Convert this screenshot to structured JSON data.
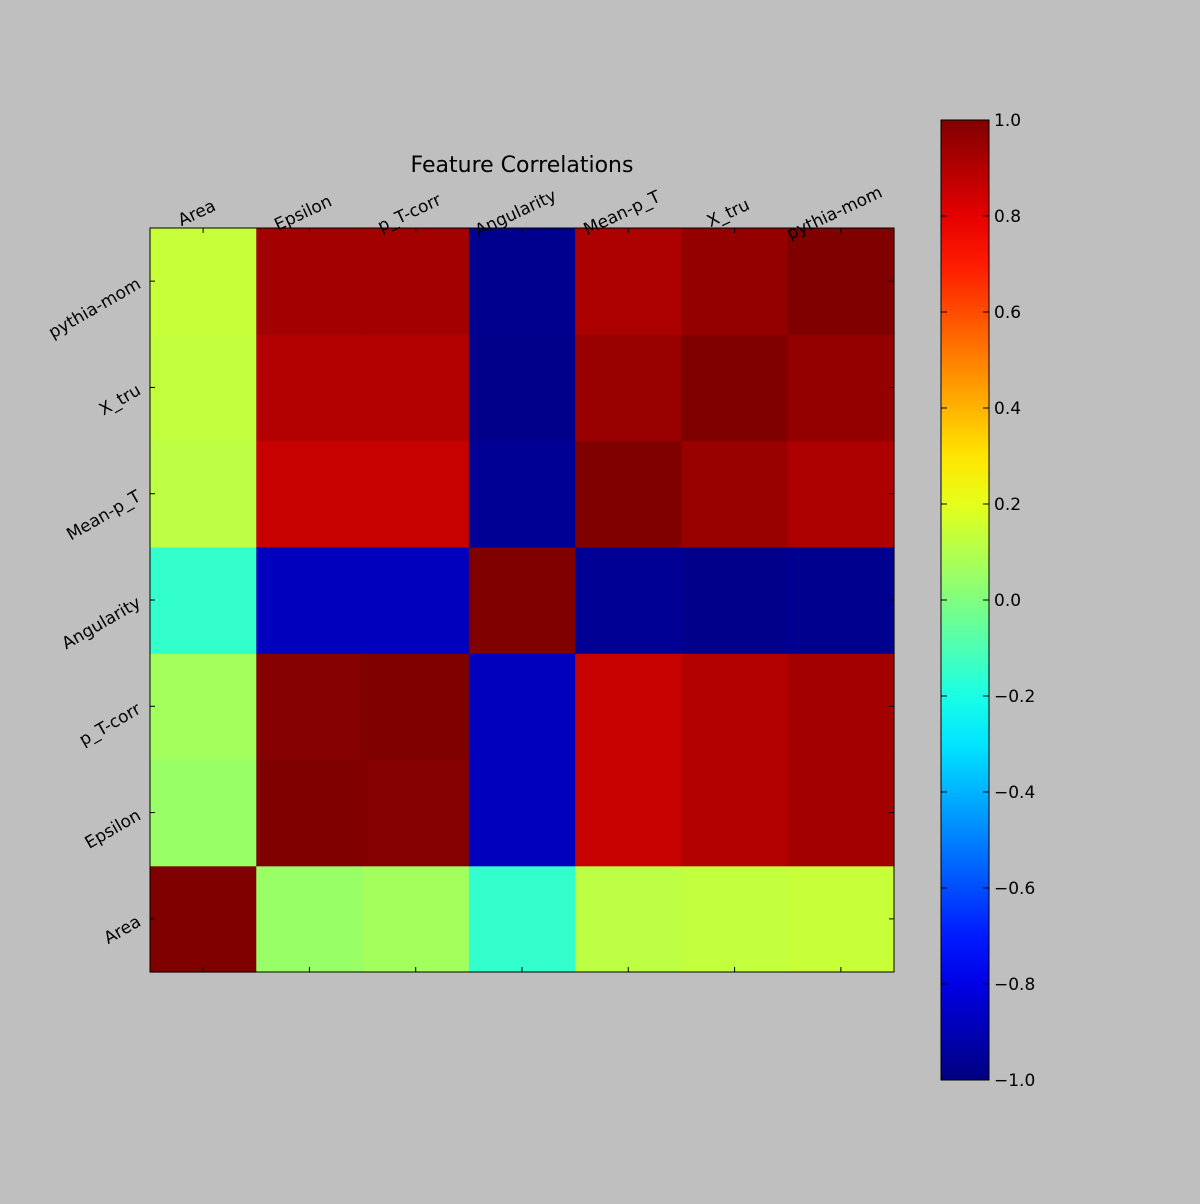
{
  "chart_data": {
    "type": "heatmap",
    "title": "Feature Correlations",
    "labels": [
      "Area",
      "Epsilon",
      "p_T-corr",
      "Angularity",
      "Mean-p_T",
      "X_tru",
      "pythia-mom"
    ],
    "matrix": [
      [
        1.0,
        0.05,
        0.07,
        -0.15,
        0.12,
        0.13,
        0.14
      ],
      [
        0.05,
        1.0,
        0.99,
        -0.88,
        0.86,
        0.9,
        0.93
      ],
      [
        0.07,
        0.99,
        1.0,
        -0.88,
        0.86,
        0.9,
        0.93
      ],
      [
        -0.15,
        -0.88,
        -0.88,
        1.0,
        -0.96,
        -0.98,
        -0.97
      ],
      [
        0.12,
        0.86,
        0.86,
        -0.96,
        1.0,
        0.95,
        0.91
      ],
      [
        0.13,
        0.9,
        0.9,
        -0.98,
        0.95,
        1.0,
        0.96
      ],
      [
        0.14,
        0.93,
        0.93,
        -0.97,
        0.91,
        0.96,
        1.0
      ]
    ],
    "colorscale": "jet",
    "vmin": -1.0,
    "vmax": 1.0,
    "colorbar_ticks": [
      "1.0",
      "0.8",
      "0.6",
      "0.4",
      "0.2",
      "0.0",
      "−0.2",
      "−0.4",
      "−0.6",
      "−0.8",
      "−1.0"
    ],
    "x_tick_position": "top",
    "y_order": "bottom-to-top",
    "legend": "colorbar-right"
  }
}
